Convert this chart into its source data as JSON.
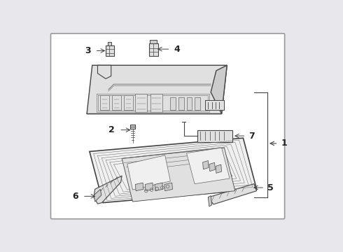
{
  "bg_color": "#e8e8ec",
  "border_color": "#aaaaaa",
  "panel_color": "#f5f5f5",
  "line_color": "#666666",
  "dark_line": "#444444",
  "detail_color": "#888888",
  "fill_light": "#f0f0f0",
  "fill_mid": "#e0e0e0",
  "fill_dark": "#cccccc",
  "fig_width": 4.9,
  "fig_height": 3.6,
  "dpi": 100
}
